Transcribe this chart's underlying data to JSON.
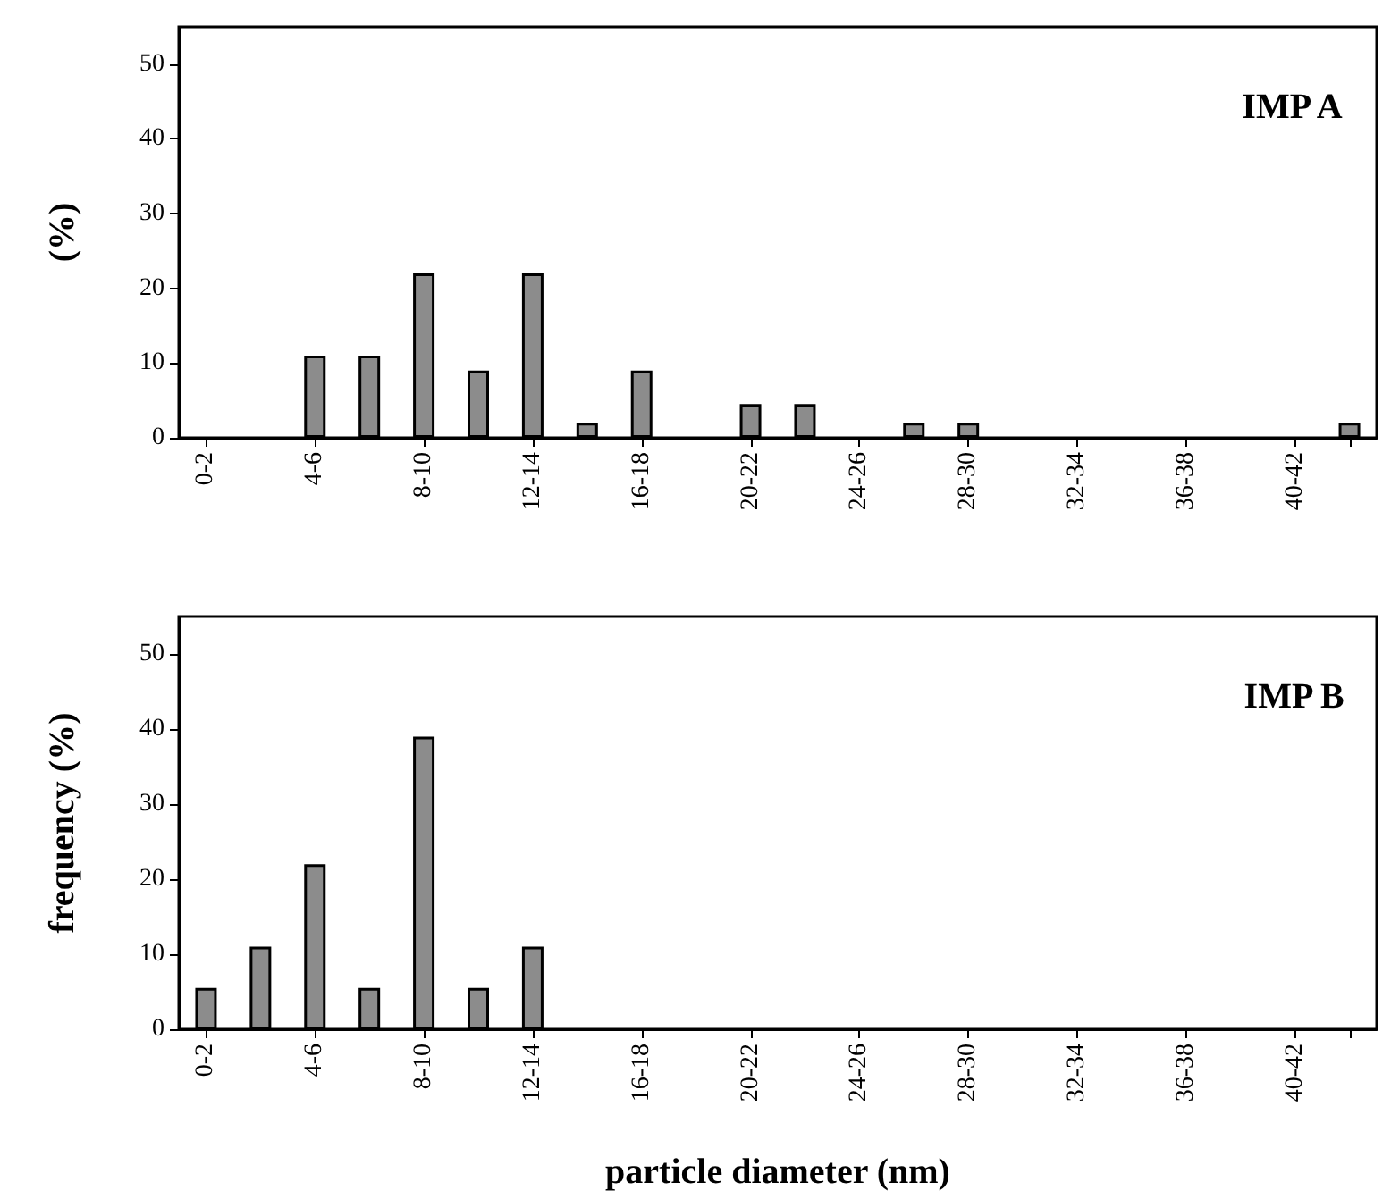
{
  "chart_data": [
    {
      "type": "bar",
      "title": "IMP A",
      "ylabel": "(%)",
      "categories": [
        "0-2",
        null,
        "4-6",
        null,
        "8-10",
        null,
        "12-14",
        null,
        "16-18",
        null,
        "20-22",
        null,
        "24-26",
        null,
        "28-30",
        null,
        "32-34",
        null,
        "36-38",
        null,
        "40-42",
        null
      ],
      "values": [
        0,
        0,
        11,
        11,
        22,
        9,
        22,
        2,
        9,
        0,
        4.5,
        4.5,
        0,
        2,
        2,
        0,
        0,
        0,
        0,
        0,
        0,
        2
      ],
      "color": "#8c8c8c",
      "ylim": [
        0,
        55
      ],
      "yticks": [
        0,
        10,
        20,
        30,
        40,
        50
      ],
      "grid": false
    },
    {
      "type": "bar",
      "title": "IMP B",
      "ylabel": "frequency (%)",
      "xlabel": "particle diameter (nm)",
      "categories": [
        "0-2",
        null,
        "4-6",
        null,
        "8-10",
        null,
        "12-14",
        null,
        "16-18",
        null,
        "20-22",
        null,
        "24-26",
        null,
        "28-30",
        null,
        "32-34",
        null,
        "36-38",
        null,
        "40-42",
        null
      ],
      "values": [
        5.5,
        11,
        22,
        5.5,
        39,
        5.5,
        11,
        0,
        0,
        0,
        0,
        0,
        0,
        0,
        0,
        0,
        0,
        0,
        0,
        0,
        0,
        0
      ],
      "color": "#8c8c8c",
      "ylim": [
        0,
        55
      ],
      "yticks": [
        0,
        10,
        20,
        30,
        40,
        50
      ],
      "grid": false
    }
  ]
}
